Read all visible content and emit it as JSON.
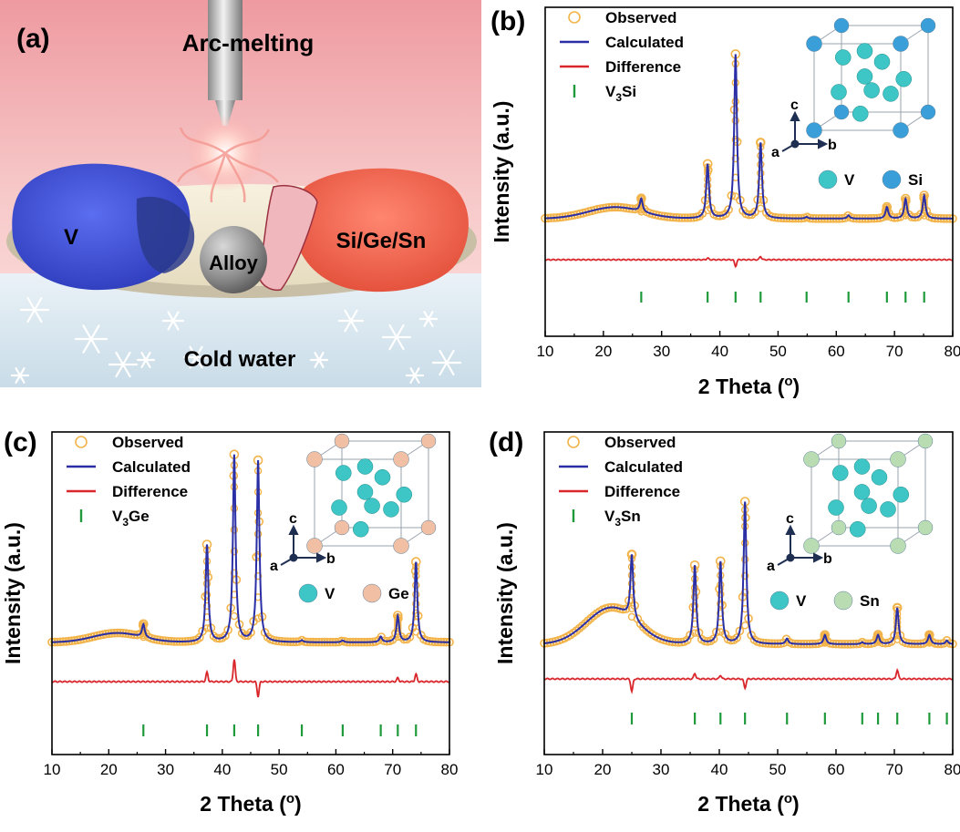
{
  "panel_a": {
    "label": "(a)",
    "title": "Arc-melting",
    "left_label": "V",
    "center_label": "Alloy",
    "right_label": "Si/Ge/Sn",
    "bottom_label": "Cold water",
    "colors": {
      "vanadium": "#3d4fd6",
      "element": "#f0694d",
      "sky": "#f7c9c9",
      "water": "#dce9f1"
    }
  },
  "chart_data": [
    {
      "panel": "(b)",
      "type": "line",
      "xlabel": "2 Theta",
      "xlabel_unit": "o",
      "ylabel": "Intensity (a.u.)",
      "xlim": [
        10,
        80
      ],
      "xticks": [
        "10",
        "20",
        "30",
        "40",
        "50",
        "60",
        "70",
        "80"
      ],
      "legend": [
        {
          "name": "Observed",
          "style": "circle",
          "color": "#f2b44a"
        },
        {
          "name": "Calculated",
          "style": "line",
          "color": "#2b2fa6"
        },
        {
          "name": "Difference",
          "style": "line",
          "color": "#d9262b"
        },
        {
          "name": "V",
          "sub": "3",
          "name2": "Si",
          "style": "bar",
          "color": "#1f9a3a"
        }
      ],
      "phase_positions": [
        26.5,
        37.9,
        42.7,
        47.0,
        54.9,
        62.1,
        68.7,
        71.9,
        75.1
      ],
      "peaks": [
        [
          26.5,
          0.08
        ],
        [
          37.9,
          0.33
        ],
        [
          42.7,
          1.0
        ],
        [
          47.0,
          0.46
        ],
        [
          54.9,
          0.01
        ],
        [
          62.1,
          0.02
        ],
        [
          68.7,
          0.07
        ],
        [
          71.9,
          0.12
        ],
        [
          75.1,
          0.14
        ]
      ],
      "hump": {
        "center": 22,
        "height": 0.07,
        "width": 6.5
      },
      "diff_spikes": [
        [
          42.7,
          -0.04
        ],
        [
          47.0,
          0.02
        ],
        [
          37.9,
          0.01
        ]
      ],
      "crystal_legend": [
        {
          "name": "V",
          "color": "#3ec6c6"
        },
        {
          "name": "Si",
          "color": "#3a9fd8"
        }
      ],
      "corner_element_color": "#3a9fd8",
      "axes": {
        "a": "a",
        "b": "b",
        "c": "c"
      }
    },
    {
      "panel": "(c)",
      "type": "line",
      "xlabel": "2 Theta",
      "xlabel_unit": "o",
      "ylabel": "Intensity (a.u.)",
      "xlim": [
        10,
        80
      ],
      "xticks": [
        "10",
        "20",
        "30",
        "40",
        "50",
        "60",
        "70",
        "80"
      ],
      "legend": [
        {
          "name": "Observed",
          "style": "circle",
          "color": "#f2b44a"
        },
        {
          "name": "Calculated",
          "style": "line",
          "color": "#2b2fa6"
        },
        {
          "name": "Difference",
          "style": "line",
          "color": "#d9262b"
        },
        {
          "name": "V",
          "sub": "3",
          "name2": "Ge",
          "style": "bar",
          "color": "#1f9a3a"
        }
      ],
      "phase_positions": [
        26.1,
        37.3,
        42.1,
        46.3,
        54.0,
        61.2,
        67.9,
        70.9,
        74.1
      ],
      "peaks": [
        [
          26.1,
          0.07
        ],
        [
          37.3,
          0.52
        ],
        [
          42.1,
          1.0
        ],
        [
          46.3,
          0.97
        ],
        [
          54.0,
          0.01
        ],
        [
          61.2,
          0.01
        ],
        [
          67.9,
          0.03
        ],
        [
          70.9,
          0.14
        ],
        [
          74.1,
          0.43
        ]
      ],
      "hump": {
        "center": 21.5,
        "height": 0.05,
        "width": 6.0
      },
      "diff_spikes": [
        [
          37.3,
          0.05
        ],
        [
          42.1,
          0.12
        ],
        [
          46.3,
          -0.08
        ],
        [
          74.1,
          0.04
        ],
        [
          70.9,
          0.02
        ]
      ],
      "crystal_legend": [
        {
          "name": "V",
          "color": "#3ec6c6"
        },
        {
          "name": "Ge",
          "color": "#f1bfa4"
        }
      ],
      "corner_element_color": "#f1bfa4",
      "axes": {
        "a": "a",
        "b": "b",
        "c": "c"
      }
    },
    {
      "panel": "(d)",
      "type": "line",
      "xlabel": "2 Theta",
      "xlabel_unit": "o",
      "ylabel": "Intensity (a.u.)",
      "xlim": [
        10,
        80
      ],
      "xticks": [
        "10",
        "20",
        "30",
        "40",
        "50",
        "60",
        "70",
        "80"
      ],
      "legend": [
        {
          "name": "Observed",
          "style": "circle",
          "color": "#f2b44a"
        },
        {
          "name": "Calculated",
          "style": "line",
          "color": "#2b2fa6"
        },
        {
          "name": "Difference",
          "style": "line",
          "color": "#d9262b"
        },
        {
          "name": "V",
          "sub": "3",
          "name2": "Sn",
          "style": "bar",
          "color": "#1f9a3a"
        }
      ],
      "phase_positions": [
        25.0,
        35.8,
        40.2,
        44.4,
        51.6,
        58.1,
        64.5,
        67.2,
        70.5,
        76.0,
        79.0
      ],
      "peaks": [
        [
          25.0,
          0.35
        ],
        [
          35.8,
          0.43
        ],
        [
          40.2,
          0.45
        ],
        [
          44.4,
          0.78
        ],
        [
          51.6,
          0.03
        ],
        [
          58.1,
          0.05
        ],
        [
          64.5,
          0.01
        ],
        [
          67.2,
          0.05
        ],
        [
          70.5,
          0.2
        ],
        [
          76.0,
          0.05
        ],
        [
          79.0,
          0.02
        ]
      ],
      "hump": {
        "center": 21.5,
        "height": 0.2,
        "width": 6.0
      },
      "diff_spikes": [
        [
          25.0,
          -0.07
        ],
        [
          35.8,
          0.03
        ],
        [
          44.4,
          -0.05
        ],
        [
          70.5,
          0.05
        ],
        [
          40.2,
          0.02
        ]
      ],
      "crystal_legend": [
        {
          "name": "V",
          "color": "#3ec6c6"
        },
        {
          "name": "Sn",
          "color": "#b9dcb3"
        }
      ],
      "corner_element_color": "#b9dcb3",
      "axes": {
        "a": "a",
        "b": "b",
        "c": "c"
      }
    }
  ]
}
